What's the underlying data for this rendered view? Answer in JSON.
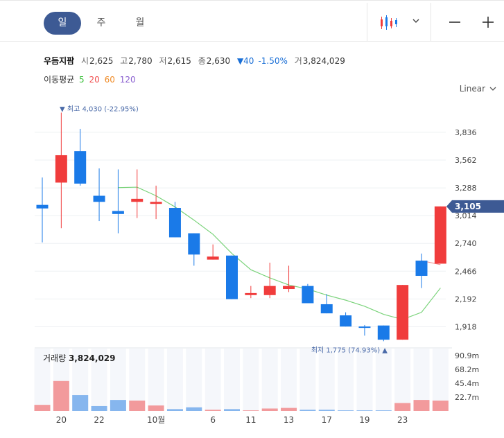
{
  "toolbar": {
    "tabs": [
      {
        "label": "일",
        "active": true
      },
      {
        "label": "주",
        "active": false
      },
      {
        "label": "월",
        "active": false
      }
    ],
    "chart_type_icon": "candlestick-icon",
    "dropdown_icon": "chevron-down-icon",
    "zoom_out_label": "−",
    "zoom_in_label": "+"
  },
  "quote": {
    "name": "우듬지팜",
    "open_label": "시",
    "open": "2,625",
    "high_label": "고",
    "high": "2,780",
    "low_label": "저",
    "low": "2,615",
    "close_label": "종",
    "close": "2,630",
    "change": "▼40",
    "change_pct": "-1.50%",
    "volume_label": "거",
    "volume": "3,824,029"
  },
  "moving_average": {
    "label": "이동평균",
    "periods": [
      {
        "value": "5",
        "color": "#3cc13c"
      },
      {
        "value": "20",
        "color": "#f05050"
      },
      {
        "value": "60",
        "color": "#f08c28"
      },
      {
        "value": "120",
        "color": "#8a5fd0"
      }
    ]
  },
  "scale": {
    "label": "Linear"
  },
  "colors": {
    "up": "#f03c3c",
    "down": "#1a7ae8",
    "ma5": "#7ad37a",
    "price_tag": "#3d5a94",
    "vol_up": "#f29a9c",
    "vol_down": "#86b6ee"
  },
  "chart_data": {
    "type": "candlestick",
    "price_axis": {
      "min": 1750,
      "max": 4150,
      "ticks": [
        "3,836",
        "3,562",
        "3,288",
        "3,014",
        "2,740",
        "2,466",
        "2,192",
        "1,918"
      ],
      "tick_values": [
        3836,
        3562,
        3288,
        3014,
        2740,
        2466,
        2192,
        1918
      ]
    },
    "current_price": "3,105",
    "current_price_value": 3105,
    "high_annotation": "▼ 최고 4,030 (-22.95%)",
    "high_value": 4030,
    "low_annotation": "최저 1,775 (74.93%) ▲",
    "low_value": 1775,
    "x_labels": [
      {
        "label": "20",
        "index": 1
      },
      {
        "label": "22",
        "index": 3
      },
      {
        "label": "10월",
        "index": 6
      },
      {
        "label": "6",
        "index": 9
      },
      {
        "label": "11",
        "index": 11
      },
      {
        "label": "13",
        "index": 13
      },
      {
        "label": "17",
        "index": 15
      },
      {
        "label": "19",
        "index": 17
      },
      {
        "label": "23",
        "index": 19
      }
    ],
    "candles": [
      {
        "o": 3120,
        "c": 3085,
        "h": 3390,
        "l": 2750
      },
      {
        "o": 3340,
        "c": 3610,
        "h": 4030,
        "l": 2890
      },
      {
        "o": 3650,
        "c": 3330,
        "h": 3870,
        "l": 3310
      },
      {
        "o": 3210,
        "c": 3150,
        "h": 3480,
        "l": 2960
      },
      {
        "o": 3060,
        "c": 3030,
        "h": 3470,
        "l": 2840
      },
      {
        "o": 3150,
        "c": 3180,
        "h": 3470,
        "l": 2990
      },
      {
        "o": 3130,
        "c": 3150,
        "h": 3310,
        "l": 2980
      },
      {
        "o": 3090,
        "c": 2800,
        "h": 3150,
        "l": 2800
      },
      {
        "o": 2840,
        "c": 2630,
        "h": 2840,
        "l": 2520
      },
      {
        "o": 2580,
        "c": 2610,
        "h": 2730,
        "l": 2580
      },
      {
        "o": 2620,
        "c": 2190,
        "h": 2620,
        "l": 2190
      },
      {
        "o": 2230,
        "c": 2250,
        "h": 2320,
        "l": 2200
      },
      {
        "o": 2230,
        "c": 2320,
        "h": 2550,
        "l": 2200
      },
      {
        "o": 2290,
        "c": 2320,
        "h": 2520,
        "l": 2260
      },
      {
        "o": 2320,
        "c": 2150,
        "h": 2340,
        "l": 2150
      },
      {
        "o": 2140,
        "c": 2050,
        "h": 2240,
        "l": 2050
      },
      {
        "o": 2030,
        "c": 1920,
        "h": 2060,
        "l": 1920
      },
      {
        "o": 1920,
        "c": 1915,
        "h": 1935,
        "l": 1830
      },
      {
        "o": 1930,
        "c": 1790,
        "h": 1930,
        "l": 1775
      },
      {
        "o": 1790,
        "c": 2330,
        "h": 2330,
        "l": 1790
      },
      {
        "o": 2570,
        "c": 2420,
        "h": 2640,
        "l": 2300
      },
      {
        "o": 2540,
        "c": 3105,
        "h": 3105,
        "l": 2540
      }
    ],
    "ma5": [
      null,
      null,
      null,
      null,
      3290,
      3295,
      3210,
      3100,
      2970,
      2830,
      2640,
      2480,
      2400,
      2330,
      2290,
      2230,
      2180,
      2120,
      2040,
      1990,
      2060,
      2300
    ],
    "ma20_tail": [
      null,
      null,
      null,
      null,
      null,
      null,
      null,
      null,
      null,
      null,
      null,
      null,
      null,
      null,
      null,
      null,
      null,
      null,
      null,
      null,
      2570,
      2530
    ],
    "volume": {
      "label": "거래량",
      "value": "3,824,029",
      "axis_ticks": [
        "90.9m",
        "68.2m",
        "45.4m",
        "22.7m"
      ],
      "tick_values": [
        90.9,
        68.2,
        45.4,
        22.7
      ],
      "max": 102,
      "values_m": [
        10,
        49,
        26,
        8,
        18,
        17,
        9,
        3,
        6,
        2,
        3,
        1,
        4,
        5,
        2,
        2,
        1,
        1,
        1,
        13,
        18,
        17
      ],
      "up": [
        true,
        true,
        false,
        false,
        false,
        true,
        true,
        false,
        false,
        true,
        false,
        true,
        true,
        true,
        false,
        false,
        false,
        false,
        false,
        true,
        true,
        true
      ]
    }
  }
}
